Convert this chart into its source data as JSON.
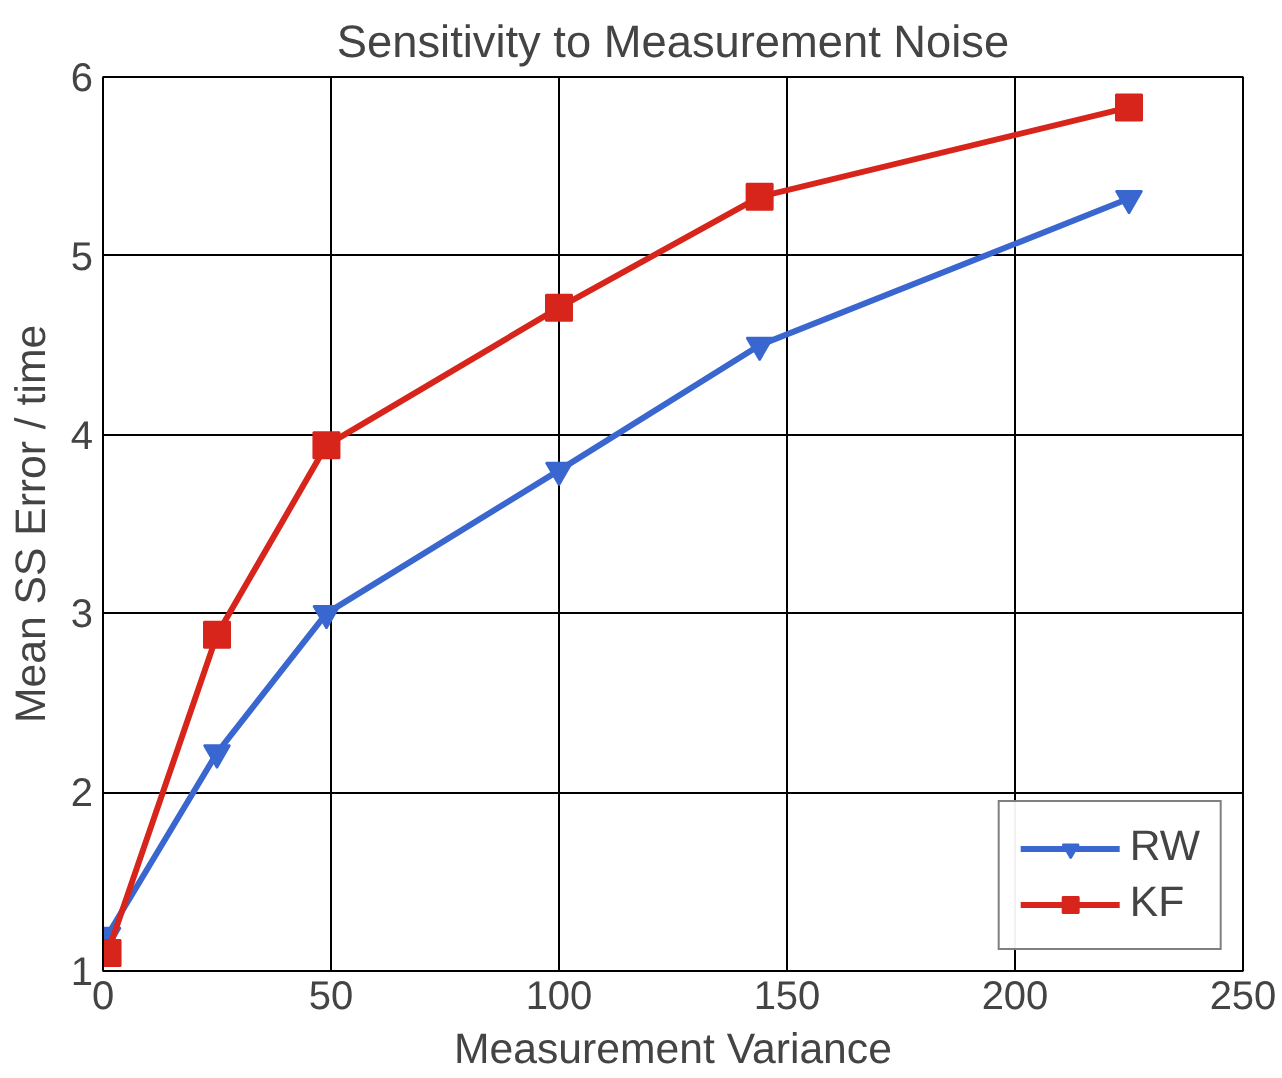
{
  "chart_data": {
    "type": "line",
    "title": "Sensitivity to Measurement Noise",
    "xlabel": "Measurement Variance",
    "ylabel": "Mean SS Error / time",
    "x": [
      1,
      25,
      49,
      100,
      144,
      225
    ],
    "series": [
      {
        "name": "RW",
        "color": "#3a66d0",
        "marker": "triangle",
        "values": [
          1.2,
          2.22,
          3.0,
          3.8,
          4.5,
          5.32
        ]
      },
      {
        "name": "KF",
        "color": "#d8251c",
        "marker": "square",
        "values": [
          1.1,
          2.88,
          3.94,
          4.71,
          5.33,
          5.83
        ]
      }
    ],
    "xlim": [
      0,
      250
    ],
    "xticks": [
      0,
      50,
      100,
      150,
      200,
      250
    ],
    "ylim": [
      1,
      6
    ],
    "yticks": [
      1,
      2,
      3,
      4,
      5,
      6
    ],
    "grid": true,
    "legend": "bottom right",
    "line_style": "solid"
  }
}
